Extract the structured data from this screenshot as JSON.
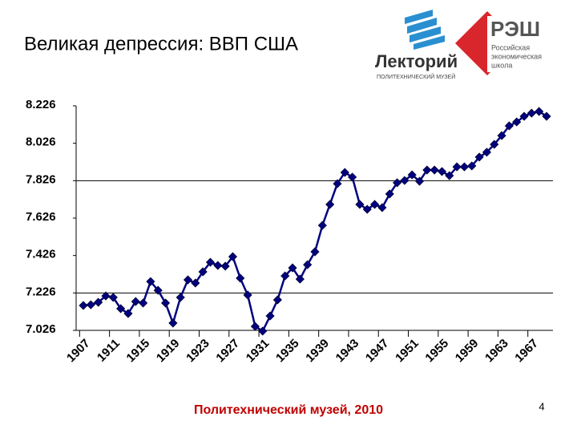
{
  "slide": {
    "title": "Великая депрессия: ВВП США",
    "footer": "Политехнический музей, 2010",
    "page_number": "4",
    "logo_left": {
      "name": "Лекторий",
      "subtitle": "ПОЛИТЕХНИЧЕСКИЙ МУЗЕЙ"
    },
    "logo_right": {
      "name": "РЭШ",
      "lines": [
        "Российская",
        "экономическая",
        "школа"
      ]
    }
  },
  "chart_data": {
    "type": "line",
    "categories": [
      "1907",
      null,
      null,
      null,
      "1911",
      null,
      null,
      null,
      "1915",
      null,
      null,
      null,
      "1919",
      null,
      null,
      null,
      "1923",
      null,
      null,
      null,
      "1927",
      null,
      null,
      null,
      "1931",
      null,
      null,
      null,
      "1935",
      null,
      null,
      null,
      "1939",
      null,
      null,
      null,
      "1943",
      null,
      null,
      null,
      "1947",
      null,
      null,
      null,
      "1951",
      null,
      null,
      null,
      "1955",
      null,
      null,
      null,
      "1959",
      null,
      null,
      null,
      "1963",
      null,
      null,
      null,
      "1967",
      null,
      null
    ],
    "values": [
      7.159,
      7.163,
      7.176,
      7.21,
      7.202,
      7.142,
      7.116,
      7.18,
      7.172,
      7.287,
      7.24,
      7.172,
      7.065,
      7.202,
      7.296,
      7.279,
      7.339,
      7.39,
      7.373,
      7.369,
      7.42,
      7.305,
      7.215,
      7.047,
      7.022,
      7.103,
      7.189,
      7.317,
      7.36,
      7.3,
      7.377,
      7.446,
      7.587,
      7.699,
      7.81,
      7.87,
      7.845,
      7.699,
      7.673,
      7.699,
      7.682,
      7.755,
      7.815,
      7.827,
      7.857,
      7.823,
      7.883,
      7.883,
      7.875,
      7.853,
      7.9,
      7.9,
      7.905,
      7.952,
      7.978,
      8.02,
      8.067,
      8.119,
      8.14,
      8.17,
      8.187,
      8.196,
      8.17
    ],
    "color": "#000080",
    "ylim": [
      7.026,
      8.226
    ],
    "yticks": [
      7.026,
      7.226,
      7.426,
      7.626,
      7.826,
      8.026,
      8.226
    ],
    "grid_lines": [
      7.226,
      7.826
    ]
  }
}
